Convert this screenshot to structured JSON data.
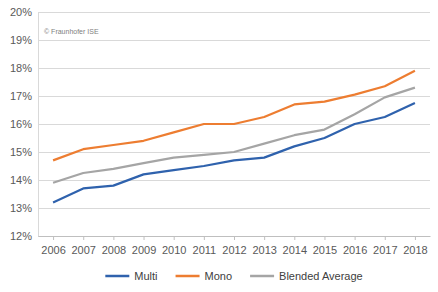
{
  "chart_data": {
    "type": "line",
    "annotation": "© Fraunhofer ISE",
    "categories": [
      "2006",
      "2007",
      "2008",
      "2009",
      "2010",
      "2011",
      "2012",
      "2013",
      "2014",
      "2015",
      "2016",
      "2017",
      "2018"
    ],
    "series": [
      {
        "name": "Multi",
        "color": "#2f62ad",
        "values": [
          13.2,
          13.7,
          13.8,
          14.2,
          14.35,
          14.5,
          14.7,
          14.8,
          15.2,
          15.5,
          16.0,
          16.25,
          16.75
        ]
      },
      {
        "name": "Mono",
        "color": "#ed7d31",
        "values": [
          14.7,
          15.1,
          15.25,
          15.4,
          15.7,
          16.0,
          16.0,
          16.25,
          16.7,
          16.8,
          17.05,
          17.35,
          17.9
        ]
      },
      {
        "name": "Blended Average",
        "color": "#a5a5a5",
        "values": [
          13.9,
          14.25,
          14.4,
          14.6,
          14.8,
          14.9,
          15.0,
          15.3,
          15.6,
          15.8,
          16.35,
          16.95,
          17.3
        ]
      }
    ],
    "ylim": [
      12,
      20
    ],
    "yticks": [
      {
        "value": 12,
        "label": "12%"
      },
      {
        "value": 13,
        "label": "13%"
      },
      {
        "value": 14,
        "label": "14%"
      },
      {
        "value": 15,
        "label": "15%"
      },
      {
        "value": 16,
        "label": "16%"
      },
      {
        "value": 17,
        "label": "17%"
      },
      {
        "value": 18,
        "label": "18%"
      },
      {
        "value": 19,
        "label": "19%"
      },
      {
        "value": 20,
        "label": "20%"
      }
    ],
    "grid": true,
    "legend": "bottom"
  }
}
